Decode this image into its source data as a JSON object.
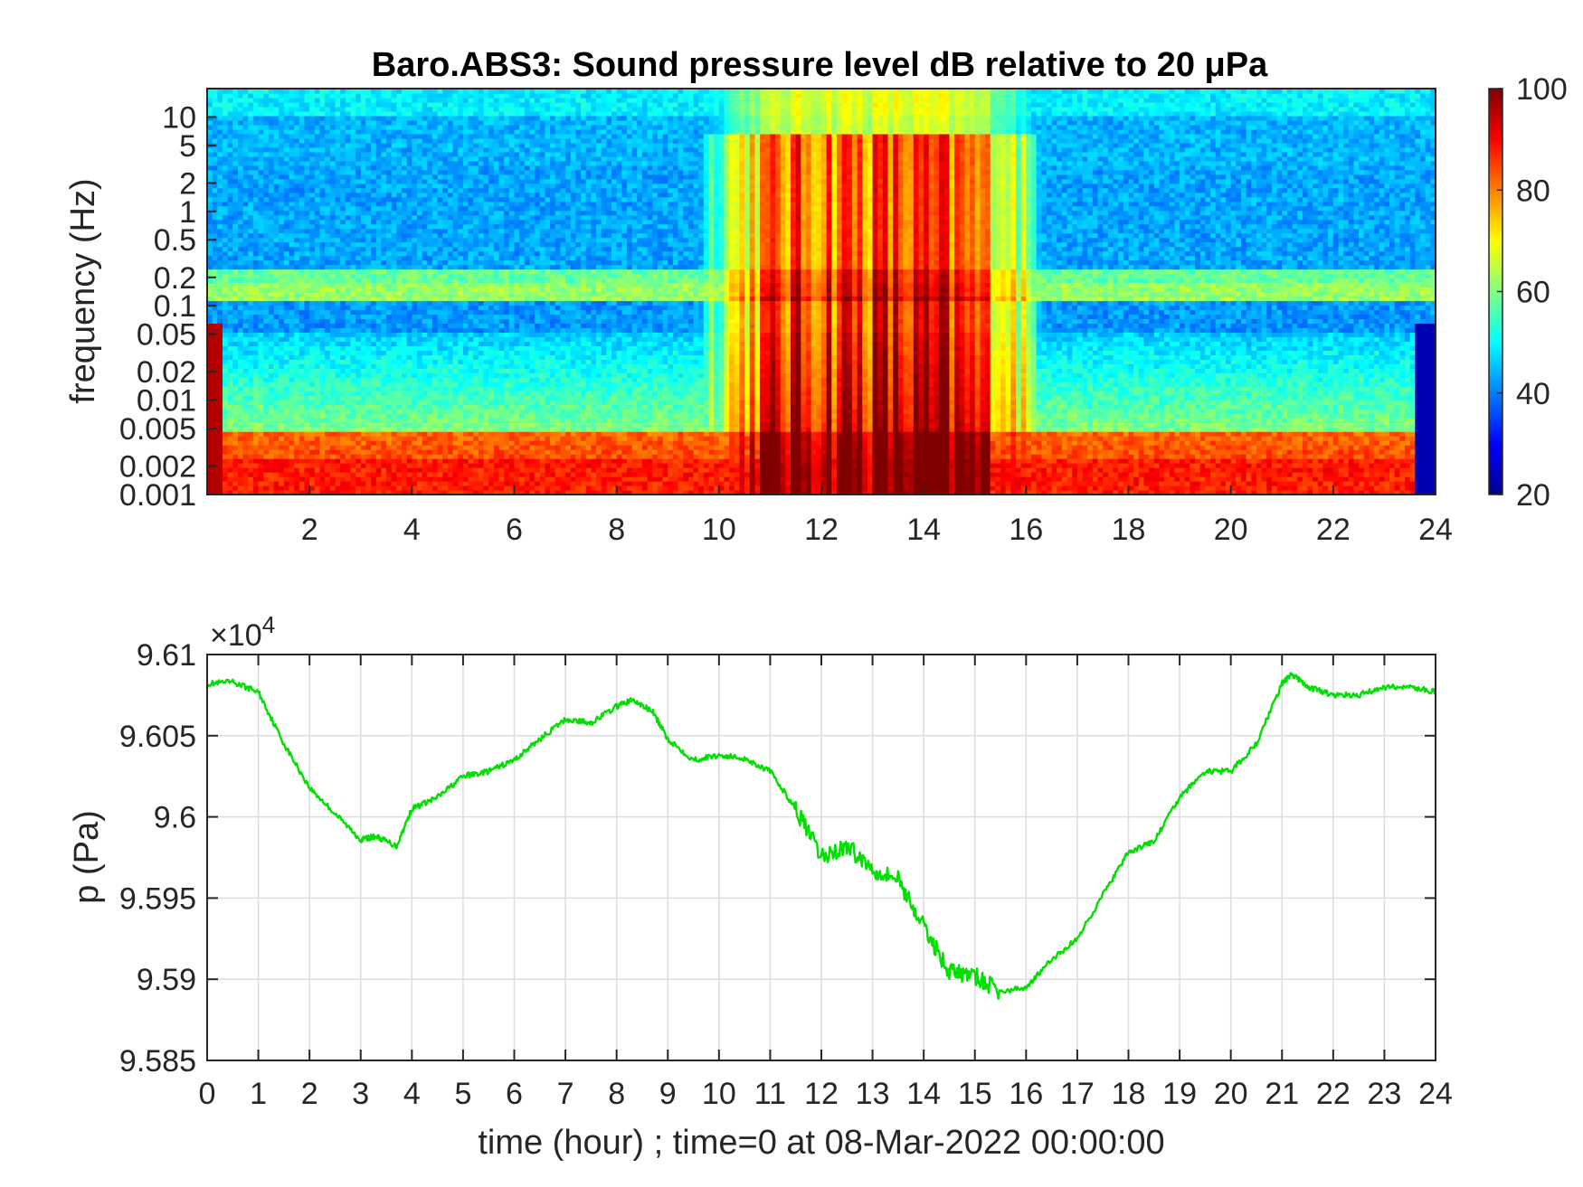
{
  "chart_data": [
    {
      "type": "heatmap",
      "title": "Baro.ABS3: Sound pressure level dB relative to 20 μPa",
      "xlabel": "",
      "ylabel": "frequency (Hz)",
      "x_range": [
        0,
        24
      ],
      "x_ticks": [
        "2",
        "4",
        "6",
        "8",
        "10",
        "12",
        "14",
        "16",
        "18",
        "20",
        "22",
        "24"
      ],
      "y_scale": "log",
      "y_range": [
        0.001,
        20
      ],
      "y_ticks": [
        "0.001",
        "0.002",
        "0.005",
        "0.01",
        "0.02",
        "0.05",
        "0.1",
        "0.2",
        "0.5",
        "1",
        "2",
        "5",
        "10"
      ],
      "y_tick_values": [
        0.001,
        0.002,
        0.005,
        0.01,
        0.02,
        0.05,
        0.1,
        0.2,
        0.5,
        1,
        2,
        5,
        10
      ],
      "colormap": "jet",
      "colorbar_range": [
        20,
        100
      ],
      "colorbar_ticks": [
        "20",
        "40",
        "60",
        "80",
        "100"
      ],
      "colorbar_tick_values": [
        20,
        40,
        60,
        80,
        100
      ],
      "high_activity_window_hours": [
        9.5,
        16.5
      ],
      "grid": false
    },
    {
      "type": "line",
      "xlabel": "time (hour) ; time=0 at 08-Mar-2022 00:00:00",
      "ylabel": "p (Pa)",
      "exponent_label": "×10",
      "exponent_power": "4",
      "x_range": [
        0,
        24
      ],
      "x_ticks": [
        "0",
        "1",
        "2",
        "3",
        "4",
        "5",
        "6",
        "7",
        "8",
        "9",
        "10",
        "11",
        "12",
        "13",
        "14",
        "15",
        "16",
        "17",
        "18",
        "19",
        "20",
        "21",
        "22",
        "23",
        "24"
      ],
      "y_range": [
        9.585,
        9.61
      ],
      "y_ticks": [
        "9.585",
        "9.59",
        "9.595",
        "9.6",
        "9.605",
        "9.61"
      ],
      "y_tick_values": [
        9.585,
        9.59,
        9.595,
        9.6,
        9.605,
        9.61
      ],
      "grid": true,
      "line_color": "#00e000",
      "series": [
        {
          "x": [
            0,
            0.5,
            1,
            1.5,
            2,
            2.5,
            3,
            3.3,
            3.7,
            4,
            4.5,
            5,
            5.5,
            6,
            6.5,
            7,
            7.5,
            8,
            8.3,
            8.7,
            9,
            9.5,
            10,
            10.5,
            11,
            11.5,
            12,
            12.5,
            13,
            13.5,
            14,
            14.5,
            15,
            15.5,
            16,
            16.5,
            17,
            17.5,
            18,
            18.5,
            19,
            19.5,
            20,
            20.5,
            21,
            21.2,
            21.5,
            22,
            22.5,
            23,
            23.5,
            24
          ],
          "y": [
            9.6082,
            9.6083,
            9.6077,
            9.6045,
            9.6018,
            9.6002,
            9.5986,
            9.5988,
            9.5982,
            9.6005,
            9.6012,
            9.6025,
            9.6028,
            9.6035,
            9.6048,
            9.606,
            9.6058,
            9.6068,
            9.6072,
            9.6065,
            9.6048,
            9.6035,
            9.6038,
            9.6036,
            9.6028,
            9.6005,
            9.5975,
            9.5982,
            9.5968,
            9.5962,
            9.5932,
            9.5905,
            9.5902,
            9.5892,
            9.5895,
            9.5912,
            9.5925,
            9.5952,
            9.5978,
            9.5985,
            9.6012,
            9.6028,
            9.6028,
            9.6045,
            9.6082,
            9.6088,
            9.608,
            9.6075,
            9.6075,
            9.608,
            9.608,
            9.6077
          ]
        }
      ]
    }
  ]
}
